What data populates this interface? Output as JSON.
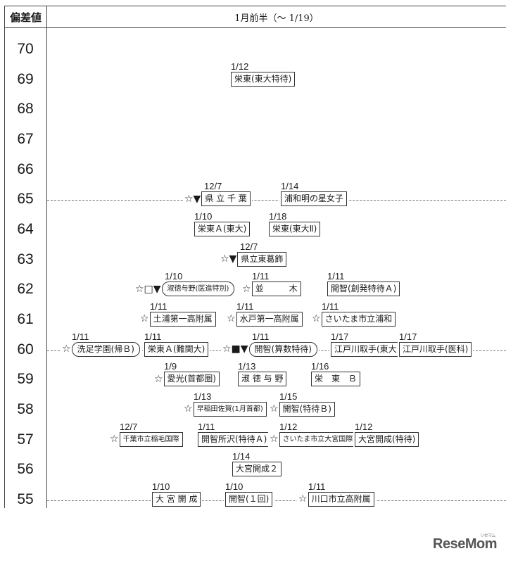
{
  "header": {
    "left_label": "偏差値",
    "right_label": "1月前半（〜 1/19）"
  },
  "scores": [
    "70",
    "69",
    "68",
    "67",
    "66",
    "65",
    "64",
    "63",
    "62",
    "61",
    "60",
    "59",
    "58",
    "57",
    "56",
    "55"
  ],
  "rows": [
    {
      "score": "69",
      "entries": [
        {
          "date": "1/12",
          "marks": "",
          "name": "栄東(東大特待)"
        }
      ]
    },
    {
      "score": "65",
      "entries": [
        {
          "date": "12/7",
          "marks": "☆▼",
          "name": "県 立 千 葉"
        },
        {
          "date": "1/14",
          "marks": "",
          "name": "浦和明の星女子"
        }
      ]
    },
    {
      "score": "64",
      "entries": [
        {
          "date": "1/10",
          "marks": "",
          "name": "栄東Ａ(東大)"
        },
        {
          "date": "1/18",
          "marks": "",
          "name": "栄東(東大Ⅱ)"
        }
      ]
    },
    {
      "score": "63",
      "entries": [
        {
          "date": "12/7",
          "marks": "☆▼",
          "name": "県立東葛飾"
        }
      ]
    },
    {
      "score": "62",
      "entries": [
        {
          "date": "1/10",
          "marks": "☆□▼",
          "name": "淑徳与野(医進特別)"
        },
        {
          "date": "1/11",
          "marks": "☆",
          "name": "並　　　木"
        },
        {
          "date": "1/11",
          "marks": "",
          "name": "開智(創発特待Ａ)"
        }
      ]
    },
    {
      "score": "61",
      "entries": [
        {
          "date": "1/11",
          "marks": "☆",
          "name": "土浦第一高附属"
        },
        {
          "date": "1/11",
          "marks": "☆",
          "name": "水戸第一高附属"
        },
        {
          "date": "1/11",
          "marks": "☆",
          "name": "さいたま市立浦和"
        }
      ]
    },
    {
      "score": "60",
      "entries": [
        {
          "date": "1/11",
          "marks": "☆",
          "name": "洗足学園(帰Ｂ)"
        },
        {
          "date": "1/11",
          "marks": "",
          "name": "栄東Ａ(難関大)"
        },
        {
          "date": "1/11",
          "marks": "☆■▼",
          "name": "開智(算数特待)"
        },
        {
          "date": "1/17",
          "marks": "",
          "name": "江戸川取手(東大)"
        },
        {
          "date": "1/17",
          "marks": "",
          "name": "江戸川取手(医科)"
        }
      ]
    },
    {
      "score": "59",
      "entries": [
        {
          "date": "1/9",
          "marks": "☆",
          "name": "愛光(首都圏)"
        },
        {
          "date": "1/13",
          "marks": "",
          "name": "淑 徳 与 野"
        },
        {
          "date": "1/16",
          "marks": "",
          "name": "栄　東　Ｂ"
        }
      ]
    },
    {
      "score": "58",
      "entries": [
        {
          "date": "1/13",
          "marks": "☆",
          "name": "早稲田佐賀(1月首都)"
        },
        {
          "date": "1/15",
          "marks": "☆",
          "name": "開智(特待Ｂ)"
        }
      ]
    },
    {
      "score": "57",
      "entries": [
        {
          "date": "12/7",
          "marks": "☆",
          "name": "千葉市立稲毛国際"
        },
        {
          "date": "1/11",
          "marks": "",
          "name": "開智所沢(特待Ａ)"
        },
        {
          "date": "1/12",
          "marks": "☆",
          "name": "さいたま市立大宮国際"
        },
        {
          "date": "1/12",
          "marks": "",
          "name": "大宮開成(特待)"
        }
      ]
    },
    {
      "score": "56",
      "entries": [
        {
          "date": "1/14",
          "marks": "",
          "name": "大宮開成２"
        }
      ]
    },
    {
      "score": "55",
      "entries": [
        {
          "date": "1/10",
          "marks": "",
          "name": "大 宮 開 成"
        },
        {
          "date": "1/10",
          "marks": "",
          "name": "開智(１回)"
        },
        {
          "date": "1/11",
          "marks": "☆",
          "name": "川口市立高附属"
        }
      ]
    }
  ],
  "logo": {
    "text": "ReseMom",
    "small_text": "リセマム"
  }
}
